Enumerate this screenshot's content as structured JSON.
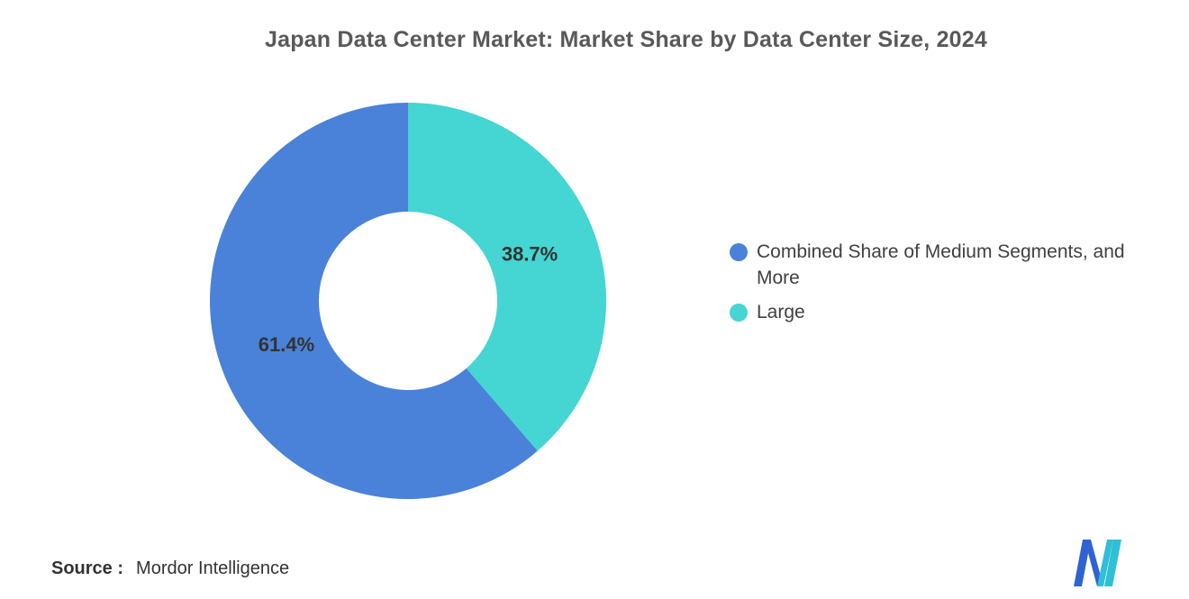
{
  "page": {
    "title": "Japan Data Center Market: Market Share by Data Center Size, 2024",
    "source_label": "Source :",
    "source_value": "Mordor Intelligence"
  },
  "chart_data": {
    "type": "pie",
    "subtype": "donut",
    "title": "Japan Data Center Market: Market Share by Data Center Size, 2024",
    "start_angle": "top",
    "direction": "counterclockwise",
    "inner_radius_ratio": 0.45,
    "legend_position": "right",
    "background": "#ffffff",
    "series": [
      {
        "name": "Combined Share of Medium Segments, and More",
        "value": 61.4,
        "label": "61.4%",
        "color": "#4A82D9"
      },
      {
        "name": "Large",
        "value": 38.7,
        "label": "38.7%",
        "color": "#45D5D2"
      }
    ],
    "label_color": "#333333",
    "title_color": "#595959"
  },
  "brand": {
    "logo_name": "mordor-intelligence-logo",
    "blue": "#2F63D2",
    "teal": "#2FBFD6"
  }
}
